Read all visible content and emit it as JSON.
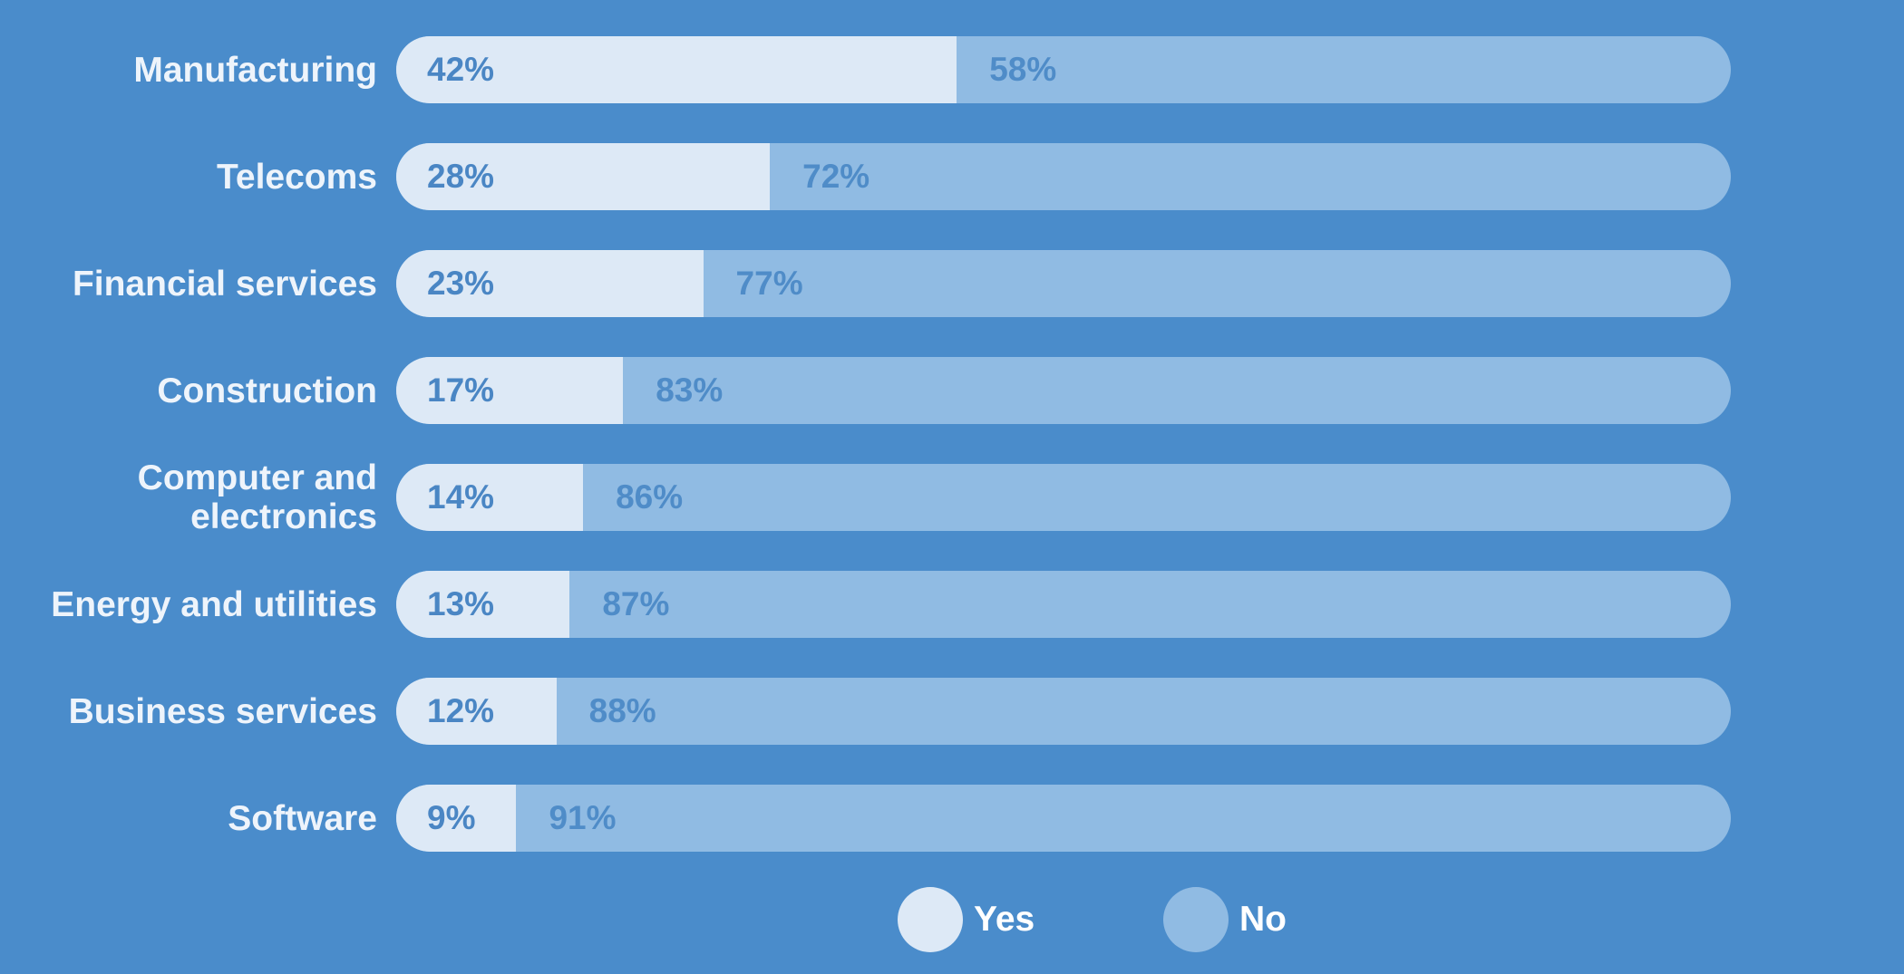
{
  "chart_data": {
    "type": "bar",
    "orientation": "horizontal",
    "stacked": true,
    "categories": [
      "Manufacturing",
      "Telecoms",
      "Financial services",
      "Construction",
      "Computer and electronics",
      "Energy and utilities",
      "Business services",
      "Software"
    ],
    "series": [
      {
        "name": "Yes",
        "color": "#dde9f6",
        "values": [
          42,
          28,
          23,
          17,
          14,
          13,
          12,
          9
        ]
      },
      {
        "name": "No",
        "color": "#90bbe3",
        "values": [
          58,
          72,
          77,
          83,
          86,
          87,
          88,
          91
        ]
      }
    ],
    "value_suffix": "%",
    "xlim": [
      0,
      100
    ],
    "legend_position": "bottom-center",
    "grid": false,
    "title": "",
    "xlabel": "",
    "ylabel": ""
  },
  "colors": {
    "background": "#4a8ccb",
    "label_text": "#eef4fb",
    "yes_value_text": "#4a86c4",
    "no_value_text": "#4f8cc8"
  }
}
